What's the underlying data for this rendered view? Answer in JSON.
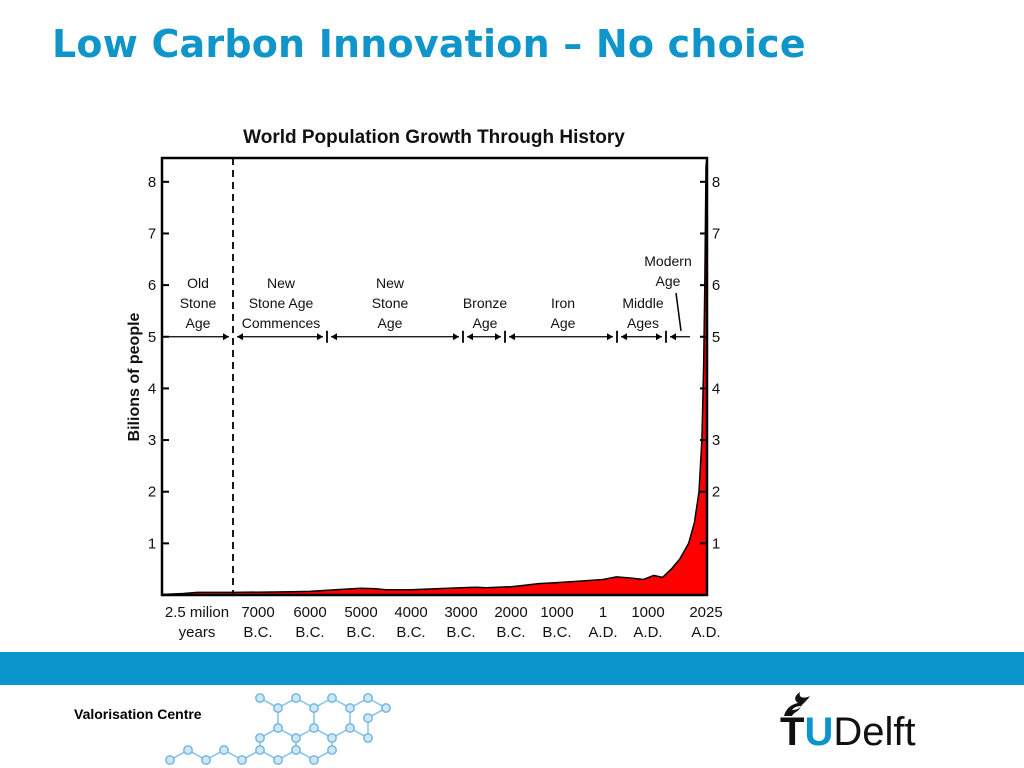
{
  "slide": {
    "title": "Low Carbon Innovation – No choice",
    "footer_label": "Valorisation Centre",
    "logo": {
      "t": "T",
      "u": "U",
      "delft": "Delft"
    }
  },
  "colors": {
    "title": "#0f95c9",
    "band": "#0a95cd",
    "area_fill": "#ff0000",
    "logo_accent": "#0a95cd"
  },
  "chart_data": {
    "type": "area",
    "title": "World Population Growth Through History",
    "ylabel": "Bilions of people",
    "xlabel": "",
    "ylim": [
      0,
      8.5
    ],
    "y_ticks": [
      1,
      2,
      3,
      4,
      5,
      6,
      7,
      8
    ],
    "grid": false,
    "x_categories": [
      [
        "2.5 milion",
        "years"
      ],
      [
        "7000",
        "B.C."
      ],
      [
        "6000",
        "B.C."
      ],
      [
        "5000",
        "B.C."
      ],
      [
        "4000",
        "B.C."
      ],
      [
        "3000",
        "B.C."
      ],
      [
        "2000",
        "B.C."
      ],
      [
        "1000",
        "B.C."
      ],
      [
        "1",
        "A.D."
      ],
      [
        "1000",
        "A.D."
      ],
      [
        "2025",
        "A.D."
      ]
    ],
    "series": [
      {
        "values": [
          [
            0,
            0.01
          ],
          [
            0.3,
            0.03
          ],
          [
            0.5,
            0.05
          ],
          [
            1,
            0.05
          ],
          [
            1.5,
            0.06
          ],
          [
            2,
            0.07
          ],
          [
            2.5,
            0.1
          ],
          [
            3,
            0.13
          ],
          [
            3.3,
            0.12
          ],
          [
            3.5,
            0.1
          ],
          [
            4,
            0.1
          ],
          [
            4.5,
            0.12
          ],
          [
            5,
            0.14
          ],
          [
            5.3,
            0.15
          ],
          [
            5.5,
            0.14
          ],
          [
            6,
            0.16
          ],
          [
            6.3,
            0.19
          ],
          [
            6.6,
            0.22
          ],
          [
            7,
            0.24
          ],
          [
            7.5,
            0.27
          ],
          [
            8,
            0.3
          ],
          [
            8.3,
            0.35
          ],
          [
            8.6,
            0.33
          ],
          [
            8.9,
            0.3
          ],
          [
            9.1,
            0.38
          ],
          [
            9.25,
            0.34
          ],
          [
            9.4,
            0.5
          ],
          [
            9.55,
            0.7
          ],
          [
            9.7,
            1.0
          ],
          [
            9.8,
            1.4
          ],
          [
            9.88,
            2.0
          ],
          [
            9.93,
            3.0
          ],
          [
            9.96,
            4.5
          ],
          [
            9.98,
            6.0
          ],
          [
            10.0,
            8.3
          ]
        ]
      }
    ],
    "era_divider": 1,
    "era_line_value": 5,
    "eras": [
      {
        "lines": [
          "Old",
          "Stone",
          "Age"
        ],
        "from": 0,
        "to": 1
      },
      {
        "lines": [
          "New",
          "Stone Age",
          "Commences"
        ],
        "from": 1,
        "to": 2.3
      },
      {
        "lines": [
          "New",
          "Stone",
          "Age"
        ],
        "from": 2.3,
        "to": 5
      },
      {
        "lines": [
          "Bronze",
          "Age"
        ],
        "from": 5,
        "to": 5.85
      },
      {
        "lines": [
          "Iron",
          "Age"
        ],
        "from": 5.85,
        "to": 8.25
      },
      {
        "lines": [
          "Middle",
          "Ages"
        ],
        "from": 8.25,
        "to": 9.15
      },
      {
        "lines": [
          "Modern",
          "Age"
        ],
        "from": 9.15,
        "to": 9.8
      }
    ]
  }
}
